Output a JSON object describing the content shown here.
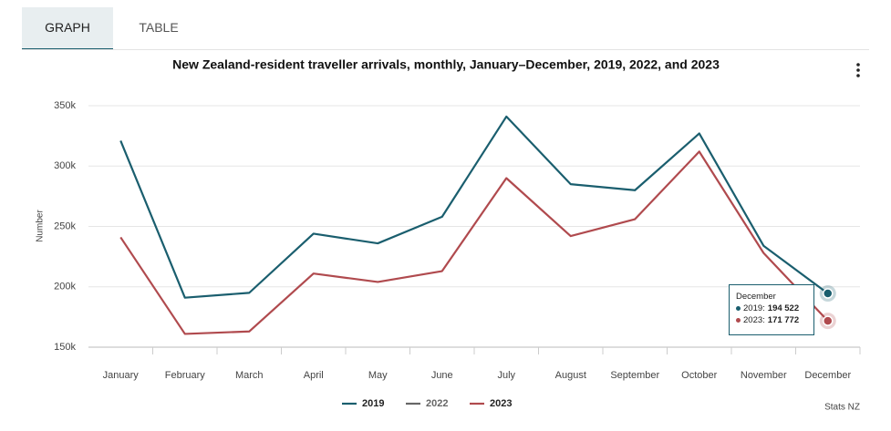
{
  "tabs": [
    "GRAPH",
    "TABLE"
  ],
  "chart_data": {
    "type": "line",
    "title": "New Zealand-resident traveller arrivals, monthly, January–December, 2019, 2022, and 2023",
    "y_label": "Number",
    "source": "Stats NZ",
    "categories": [
      "January",
      "February",
      "March",
      "April",
      "May",
      "June",
      "July",
      "August",
      "September",
      "October",
      "November",
      "December"
    ],
    "series": [
      {
        "name": "2019",
        "color": "#1a5e6e",
        "values": [
          321000,
          191000,
          195000,
          244000,
          236000,
          258000,
          341000,
          285000,
          280000,
          327000,
          234000,
          194522
        ],
        "value_labels": [
          null,
          null,
          null,
          null,
          null,
          null,
          null,
          null,
          null,
          null,
          null,
          "194 522"
        ]
      },
      {
        "name": "2022",
        "color": "#666666",
        "values": [
          null,
          null,
          null,
          null,
          null,
          null,
          null,
          null,
          null,
          null,
          null,
          null
        ]
      },
      {
        "name": "2023",
        "color": "#b04a4e",
        "values": [
          241000,
          161000,
          163000,
          211000,
          204000,
          213000,
          290000,
          242000,
          256000,
          312000,
          228000,
          171772
        ],
        "value_labels": [
          null,
          null,
          null,
          null,
          null,
          null,
          null,
          null,
          null,
          null,
          null,
          "171 772"
        ]
      }
    ],
    "ylim": [
      150000,
      350000
    ],
    "yticks": [
      {
        "value": 150000,
        "label": "150k"
      },
      {
        "value": 200000,
        "label": "200k"
      },
      {
        "value": 250000,
        "label": "250k"
      },
      {
        "value": 300000,
        "label": "300k"
      },
      {
        "value": 350000,
        "label": "350k"
      }
    ],
    "grid": true
  }
}
